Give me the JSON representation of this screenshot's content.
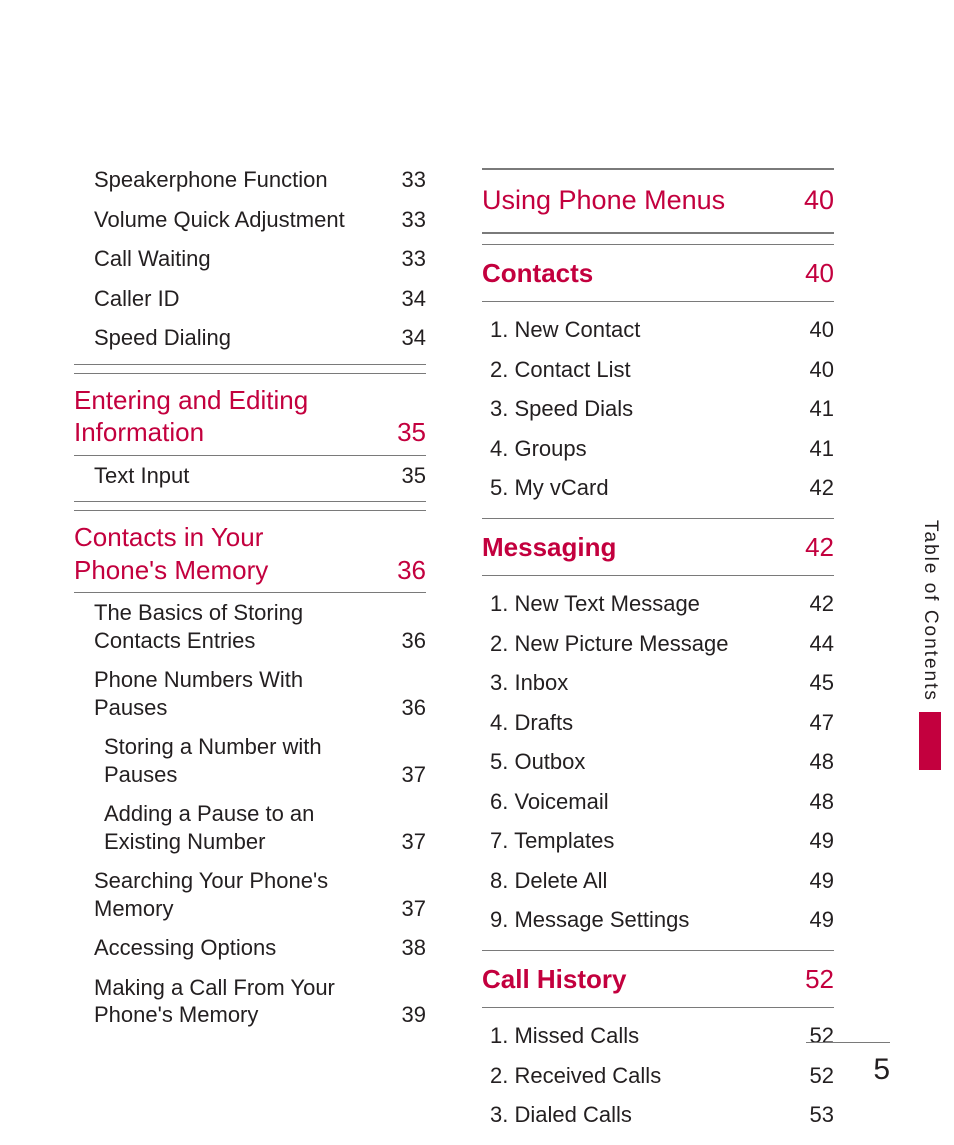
{
  "colors": {
    "accent": "#c3003e",
    "text": "#231f20",
    "rule": "#7a7a7a",
    "bg": "#ffffff"
  },
  "side_label": "Table of Contents",
  "page_number": "5",
  "left": {
    "plain": [
      {
        "t": "Speakerphone Function",
        "p": "33"
      },
      {
        "t": "Volume Quick Adjustment",
        "p": "33"
      },
      {
        "t": "Call Waiting",
        "p": "33"
      },
      {
        "t": "Caller ID",
        "p": "34"
      },
      {
        "t": "Speed Dialing",
        "p": "34"
      }
    ],
    "sec1": {
      "title": "Entering and Editing Information",
      "page": "35",
      "items": [
        {
          "t": "Text Input",
          "p": "35"
        }
      ]
    },
    "sec2": {
      "title": "Contacts in Your Phone's Memory",
      "page": "36",
      "items": [
        {
          "t": "The Basics of Storing Contacts Entries",
          "p": "36",
          "lvl": 1
        },
        {
          "t": "Phone Numbers With Pauses",
          "p": "36",
          "lvl": 1
        },
        {
          "t": "Storing a Number with Pauses",
          "p": "37",
          "lvl": 2
        },
        {
          "t": "Adding a Pause to an Existing Number",
          "p": "37",
          "lvl": 2
        },
        {
          "t": "Searching Your Phone's Memory",
          "p": "37",
          "lvl": 1
        },
        {
          "t": "Accessing Options",
          "p": "38",
          "lvl": 1
        },
        {
          "t": "Making a Call From Your Phone's Memory",
          "p": "39",
          "lvl": 1
        }
      ]
    }
  },
  "right": {
    "chapter": {
      "title": "Using Phone Menus",
      "page": "40"
    },
    "groups": [
      {
        "title": "Contacts",
        "page": "40",
        "items": [
          {
            "t": "1. New Contact",
            "p": "40"
          },
          {
            "t": "2. Contact List",
            "p": "40"
          },
          {
            "t": "3. Speed Dials",
            "p": "41"
          },
          {
            "t": "4. Groups",
            "p": "41"
          },
          {
            "t": "5. My vCard",
            "p": "42"
          }
        ]
      },
      {
        "title": "Messaging",
        "page": "42",
        "items": [
          {
            "t": "1. New Text Message",
            "p": "42"
          },
          {
            "t": "2.  New Picture Message",
            "p": "44"
          },
          {
            "t": "3. Inbox",
            "p": "45"
          },
          {
            "t": "4. Drafts",
            "p": "47"
          },
          {
            "t": "5. Outbox",
            "p": "48"
          },
          {
            "t": "6. Voicemail",
            "p": "48"
          },
          {
            "t": "7. Templates",
            "p": "49"
          },
          {
            "t": "8. Delete All",
            "p": "49"
          },
          {
            "t": "9. Message Settings",
            "p": "49"
          }
        ]
      },
      {
        "title": "Call History",
        "page": "52",
        "items": [
          {
            "t": "1. Missed Calls",
            "p": "52"
          },
          {
            "t": "2. Received Calls",
            "p": "52"
          },
          {
            "t": "3. Dialed Calls",
            "p": "53"
          }
        ]
      }
    ]
  }
}
